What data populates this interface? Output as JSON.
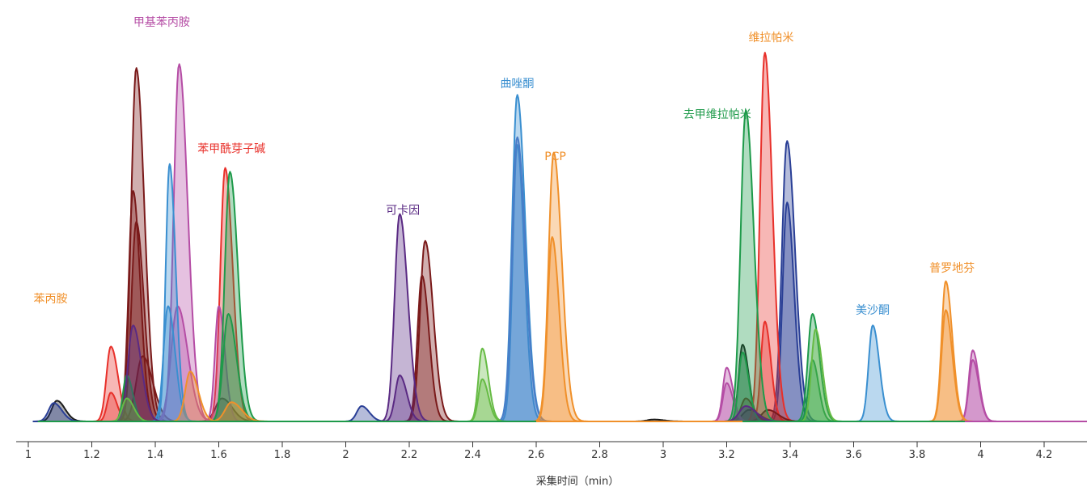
{
  "chart_data": {
    "type": "line",
    "title": "",
    "xlabel": "采集时间（min）",
    "ylabel": "",
    "xlim": [
      0.95,
      4.35
    ],
    "ylim": [
      0,
      100
    ],
    "x_ticks": [
      1,
      1.2,
      1.4,
      1.6,
      1.8,
      2,
      2.2,
      2.4,
      2.6,
      2.8,
      3,
      3.2,
      3.4,
      3.6,
      3.8,
      4,
      4.2
    ],
    "x_tick_labels": [
      "1",
      "1.2",
      "1.4",
      "1.6",
      "1.8",
      "2",
      "2.2",
      "2.4",
      "2.6",
      "2.8",
      "3",
      "3.2",
      "3.4",
      "3.6",
      "3.8",
      "4",
      "4.2"
    ],
    "grid": false,
    "annotations": [
      {
        "text": "苯丙胺",
        "x": 1.07,
        "y": 31,
        "color": "#f0902a"
      },
      {
        "text": "甲基苯丙胺",
        "x": 1.42,
        "y": 103,
        "color": "#b54da5"
      },
      {
        "text": "苯甲酰芽子碱",
        "x": 1.64,
        "y": 70,
        "color": "#e8302a"
      },
      {
        "text": "可卡因",
        "x": 2.18,
        "y": 54,
        "color": "#5a2a83"
      },
      {
        "text": "曲唑酮",
        "x": 2.54,
        "y": 87,
        "color": "#3a8fd0"
      },
      {
        "text": "PCP",
        "x": 2.66,
        "y": 68,
        "color": "#f0902a"
      },
      {
        "text": "去甲维拉帕米",
        "x": 3.17,
        "y": 79,
        "color": "#1e9a4a"
      },
      {
        "text": "维拉帕米",
        "x": 3.34,
        "y": 99,
        "color": "#f0902a"
      },
      {
        "text": "美沙酮",
        "x": 3.66,
        "y": 28,
        "color": "#3a8fd0"
      },
      {
        "text": "普罗地芬",
        "x": 3.91,
        "y": 39,
        "color": "#f0902a"
      }
    ],
    "series": [
      {
        "color": "#1a1a1a",
        "peaks": [
          [
            1.09,
            5.4,
            0.016
          ],
          [
            1.61,
            6,
            0.02
          ],
          [
            3.25,
            20,
            0.012
          ],
          [
            3.27,
            3,
            0.02
          ],
          [
            2.97,
            0.5,
            0.02
          ]
        ]
      },
      {
        "color": "#2a3f96",
        "peaks": [
          [
            1.08,
            4.8,
            0.016
          ],
          [
            2.05,
            4,
            0.015
          ],
          [
            3.39,
            73,
            0.016
          ],
          [
            3.39,
            57,
            0.014
          ]
        ]
      },
      {
        "color": "#e8302a",
        "peaks": [
          [
            1.26,
            19.5,
            0.014
          ],
          [
            1.26,
            7.5,
            0.012
          ],
          [
            1.62,
            66,
            0.015
          ],
          [
            3.32,
            96,
            0.015
          ],
          [
            3.32,
            26,
            0.012
          ]
        ]
      },
      {
        "color": "#7a1a1a",
        "peaks": [
          [
            1.34,
            92,
            0.016
          ],
          [
            1.33,
            60,
            0.014
          ],
          [
            1.34,
            52,
            0.015
          ],
          [
            1.36,
            17,
            0.02
          ],
          [
            2.25,
            47,
            0.016
          ],
          [
            2.24,
            38,
            0.014
          ],
          [
            3.26,
            6,
            0.015
          ],
          [
            3.33,
            3,
            0.02
          ]
        ]
      },
      {
        "color": "#b54da5",
        "peaks": [
          [
            1.475,
            93,
            0.017
          ],
          [
            1.47,
            30,
            0.02
          ],
          [
            1.6,
            30,
            0.012
          ],
          [
            3.2,
            14,
            0.012
          ],
          [
            3.2,
            10,
            0.012
          ],
          [
            3.975,
            18.5,
            0.012
          ],
          [
            3.975,
            16,
            0.012
          ]
        ]
      },
      {
        "color": "#3a8fd0",
        "peaks": [
          [
            1.445,
            67,
            0.012
          ],
          [
            1.44,
            30,
            0.014
          ],
          [
            2.54,
            85,
            0.016
          ],
          [
            2.54,
            72,
            0.014
          ],
          [
            3.66,
            25,
            0.013
          ]
        ]
      },
      {
        "color": "#4a7cc7",
        "peaks": [
          [
            2.54,
            74,
            0.016
          ]
        ]
      },
      {
        "color": "#1e9a4a",
        "peaks": [
          [
            1.635,
            65,
            0.016
          ],
          [
            1.63,
            28,
            0.016
          ],
          [
            1.31,
            12,
            0.012
          ],
          [
            3.26,
            81,
            0.016
          ],
          [
            3.25,
            18,
            0.012
          ],
          [
            3.47,
            28,
            0.014
          ],
          [
            3.47,
            16,
            0.012
          ]
        ]
      },
      {
        "color": "#5a2a83",
        "peaks": [
          [
            2.17,
            54,
            0.016
          ],
          [
            2.17,
            12,
            0.014
          ],
          [
            1.33,
            25,
            0.016
          ],
          [
            3.26,
            4,
            0.02
          ]
        ]
      },
      {
        "color": "#f0902a",
        "peaks": [
          [
            2.655,
            70,
            0.016
          ],
          [
            2.65,
            48,
            0.014
          ],
          [
            1.51,
            13,
            0.016
          ],
          [
            1.64,
            5,
            0.02
          ],
          [
            3.89,
            36.5,
            0.013
          ],
          [
            3.89,
            29,
            0.013
          ]
        ]
      },
      {
        "color": "#66bb44",
        "peaks": [
          [
            2.43,
            19,
            0.012
          ],
          [
            2.43,
            11,
            0.012
          ],
          [
            3.48,
            24,
            0.013
          ],
          [
            1.31,
            6,
            0.014
          ]
        ]
      }
    ]
  }
}
